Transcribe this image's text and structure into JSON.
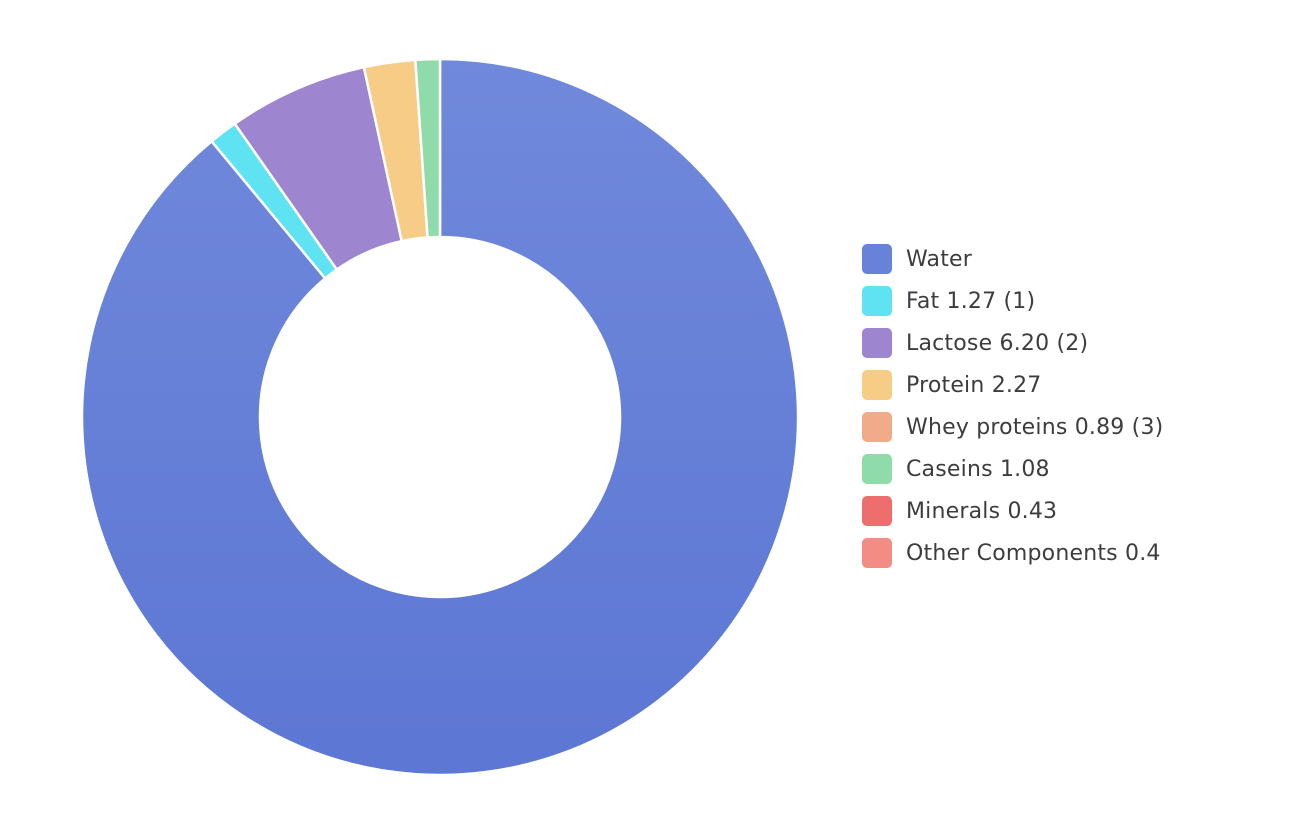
{
  "chart_data": {
    "type": "pie",
    "variant": "donut",
    "title": "",
    "legend_position": "right",
    "slices": [
      {
        "label": "Water",
        "value": 87.46,
        "color": "#6882d9"
      },
      {
        "label": "Fat 1.27 (1)",
        "value": 1.27,
        "color": "#5fe3f2"
      },
      {
        "label": "Lactose 6.20 (2)",
        "value": 6.2,
        "color": "#9d86cf"
      },
      {
        "label": "Protein 2.27",
        "value": 2.27,
        "color": "#f6cc87"
      },
      {
        "label": "Whey proteins 0.89 (3)",
        "value": 0.89,
        "color": "#f2ab8a"
      },
      {
        "label": "Caseins 1.08",
        "value": 1.08,
        "color": "#8fdcaa"
      },
      {
        "label": "Minerals 0.43",
        "value": 0.43,
        "color": "#ee6e6e"
      },
      {
        "label": "Other Components 0.4",
        "value": 0.4,
        "color": "#f28c85"
      }
    ],
    "drawn_slices": [
      {
        "label": "Water",
        "value": 87.46,
        "color": "#6882d9"
      },
      {
        "label": "Fat 1.27 (1)",
        "value": 1.27,
        "color": "#5fe3f2"
      },
      {
        "label": "Lactose 6.20 (2)",
        "value": 6.2,
        "color": "#9d86cf"
      },
      {
        "label": "Protein 2.27",
        "value": 2.27,
        "color": "#f6cc87"
      },
      {
        "label": "Caseins 1.08",
        "value": 1.08,
        "color": "#8fdcaa"
      }
    ]
  }
}
